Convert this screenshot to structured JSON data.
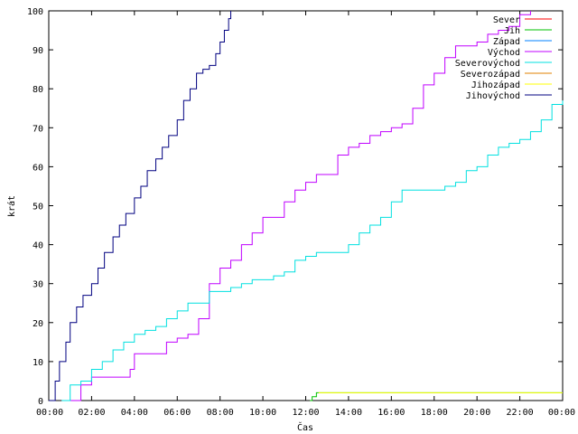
{
  "chart_data": {
    "type": "line",
    "xlabel": "Čas",
    "ylabel": "krát",
    "xlim": [
      0,
      24
    ],
    "ylim": [
      0,
      100
    ],
    "x_ticks": [
      {
        "value": 0,
        "label": "00:00"
      },
      {
        "value": 2,
        "label": "02:00"
      },
      {
        "value": 4,
        "label": "04:00"
      },
      {
        "value": 6,
        "label": "06:00"
      },
      {
        "value": 8,
        "label": "08:00"
      },
      {
        "value": 10,
        "label": "10:00"
      },
      {
        "value": 12,
        "label": "12:00"
      },
      {
        "value": 14,
        "label": "14:00"
      },
      {
        "value": 16,
        "label": "16:00"
      },
      {
        "value": 18,
        "label": "18:00"
      },
      {
        "value": 20,
        "label": "20:00"
      },
      {
        "value": 22,
        "label": "22:00"
      },
      {
        "value": 24,
        "label": "00:00"
      }
    ],
    "y_ticks": [
      0,
      10,
      20,
      30,
      40,
      50,
      60,
      70,
      80,
      90,
      100
    ],
    "grid": false,
    "legend_position": "top-right",
    "series": [
      {
        "name": "Sever",
        "color": "#ff0000",
        "x": [],
        "y": []
      },
      {
        "name": "Jih",
        "color": "#00c000",
        "x": [
          12.2,
          12.3,
          12.5,
          24
        ],
        "y": [
          0,
          1,
          2,
          2
        ]
      },
      {
        "name": "Západ",
        "color": "#0080ff",
        "x": [],
        "y": []
      },
      {
        "name": "Východ",
        "color": "#c000ff",
        "x": [
          1.0,
          1.5,
          2.0,
          3.0,
          3.8,
          4.0,
          5.0,
          5.5,
          6.0,
          6.5,
          7.0,
          7.5,
          8.0,
          8.5,
          9.0,
          9.5,
          10.0,
          10.5,
          11.0,
          11.5,
          12.0,
          12.5,
          13.0,
          13.5,
          14.0,
          14.5,
          15.0,
          15.5,
          16.0,
          16.5,
          17.0,
          17.5,
          18.0,
          18.5,
          19.0,
          19.5,
          20.0,
          20.5,
          21.0,
          21.5,
          22.0,
          22.5
        ],
        "y": [
          0,
          4,
          6,
          6,
          8,
          12,
          12,
          15,
          16,
          17,
          21,
          30,
          34,
          36,
          40,
          43,
          47,
          47,
          51,
          54,
          56,
          58,
          58,
          63,
          65,
          66,
          68,
          69,
          70,
          71,
          75,
          81,
          84,
          88,
          91,
          91,
          92,
          94,
          95,
          96,
          99,
          100
        ]
      },
      {
        "name": "Severovýchod",
        "color": "#00e0e0",
        "x": [
          0.6,
          1.0,
          1.5,
          2.0,
          2.5,
          3.0,
          3.5,
          4.0,
          4.5,
          5.0,
          5.5,
          6.0,
          6.5,
          7.0,
          7.5,
          8.0,
          8.5,
          9.0,
          9.5,
          10.0,
          10.5,
          11.0,
          11.5,
          12.0,
          12.5,
          13.0,
          13.5,
          14.0,
          14.5,
          15.0,
          15.5,
          16.0,
          16.5,
          17.0,
          17.5,
          18.0,
          18.5,
          19.0,
          19.5,
          20.0,
          20.5,
          21.0,
          21.5,
          22.0,
          22.5,
          23.0,
          23.5,
          24.0
        ],
        "y": [
          0,
          4,
          5,
          8,
          10,
          13,
          15,
          17,
          18,
          19,
          21,
          23,
          25,
          25,
          28,
          28,
          29,
          30,
          31,
          31,
          32,
          33,
          36,
          37,
          38,
          38,
          38,
          40,
          43,
          45,
          47,
          51,
          54,
          54,
          54,
          54,
          55,
          56,
          59,
          60,
          63,
          65,
          66,
          67,
          69,
          72,
          76,
          77
        ]
      },
      {
        "name": "Severozápad",
        "color": "#e08000",
        "x": [],
        "y": []
      },
      {
        "name": "Jihozápad",
        "color": "#ffff00",
        "x": [
          12.6,
          24
        ],
        "y": [
          2,
          2
        ]
      },
      {
        "name": "Jihovýchod",
        "color": "#000080",
        "x": [
          0,
          0.3,
          0.5,
          0.8,
          1.0,
          1.3,
          1.6,
          2.0,
          2.3,
          2.6,
          3.0,
          3.3,
          3.6,
          4.0,
          4.3,
          4.6,
          5.0,
          5.3,
          5.6,
          6.0,
          6.3,
          6.6,
          6.9,
          7.2,
          7.5,
          7.8,
          8.0,
          8.2,
          8.4,
          8.5
        ],
        "y": [
          0,
          5,
          10,
          15,
          20,
          24,
          27,
          30,
          34,
          38,
          42,
          45,
          48,
          52,
          55,
          59,
          62,
          65,
          68,
          72,
          77,
          80,
          84,
          85,
          86,
          89,
          92,
          95,
          98,
          100
        ]
      }
    ]
  }
}
